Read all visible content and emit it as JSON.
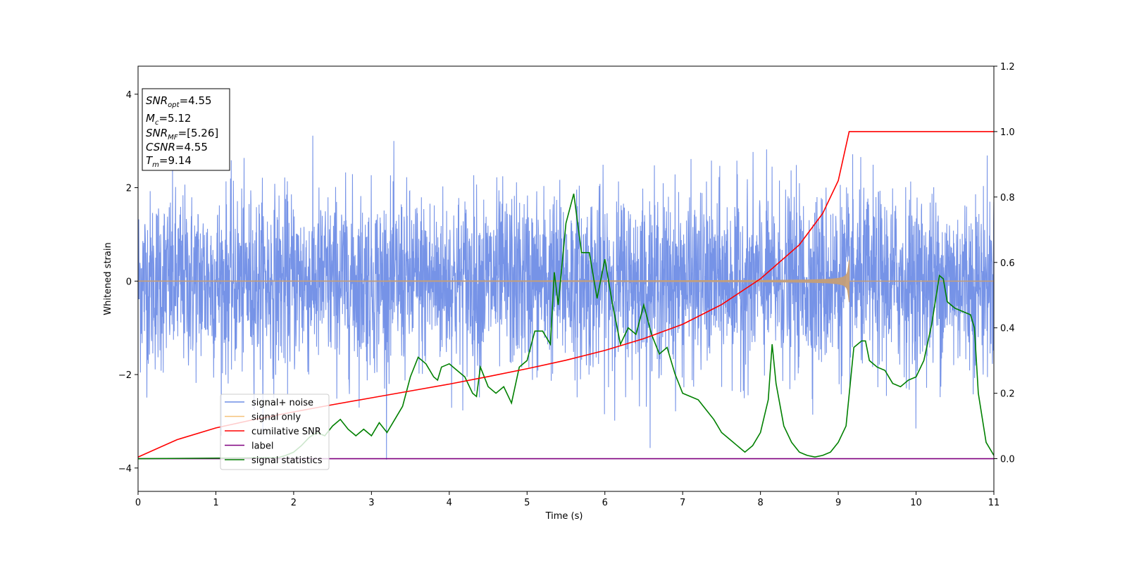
{
  "chart_data": {
    "type": "line",
    "xlabel": "Time (s)",
    "ylabel": "Whitened strain",
    "xlim": [
      0,
      11
    ],
    "ylim": [
      -4.5,
      4.6
    ],
    "y2lim": [
      -0.1,
      1.2
    ],
    "xticks": [
      0,
      1,
      2,
      3,
      4,
      5,
      6,
      7,
      8,
      9,
      10,
      11
    ],
    "yticks": [
      -4,
      -2,
      0,
      2,
      4
    ],
    "y2ticks": [
      0.0,
      0.2,
      0.4,
      0.6,
      0.8,
      1.0,
      1.2
    ],
    "y2tick_labels": [
      "0.0",
      "0.2",
      "0.4",
      "0.6",
      "0.8",
      "1.0",
      "1.2"
    ],
    "grid": false,
    "legend_position": "lower-left",
    "annotation": {
      "lines": [
        {
          "main": "SNR",
          "sub": "opt",
          "rest": "=4.55"
        },
        {
          "main": "M",
          "sub": "c",
          "rest": "=5.12"
        },
        {
          "main": "SNR",
          "sub": "MF",
          "rest": "=[5.26]"
        },
        {
          "main": "CSNR",
          "sub": "",
          "rest": "=4.55"
        },
        {
          "main": "T",
          "sub": "m",
          "rest": "=9.14"
        }
      ]
    },
    "merger_time": 9.14,
    "series": [
      {
        "name": "signal+ noise",
        "axis": "left",
        "color": "#6f8de6",
        "noise_sigma": 1.0,
        "duration": 11
      },
      {
        "name": "signal only",
        "axis": "left",
        "color": "#f5c27a",
        "draw_color": "#c49e78",
        "peak_amplitude": 0.45,
        "end_time": 9.14
      },
      {
        "name": "cumilative SNR",
        "axis": "right",
        "color": "#ff0000",
        "x": [
          0,
          0.5,
          1,
          1.5,
          2,
          2.5,
          3,
          3.5,
          4,
          4.5,
          5,
          5.5,
          6,
          6.5,
          7,
          7.5,
          8,
          8.5,
          8.8,
          9.0,
          9.14,
          11
        ],
        "y": [
          0.005,
          0.058,
          0.094,
          0.12,
          0.143,
          0.165,
          0.186,
          0.207,
          0.228,
          0.251,
          0.275,
          0.301,
          0.331,
          0.367,
          0.411,
          0.471,
          0.55,
          0.654,
          0.75,
          0.85,
          1.0,
          1.0
        ]
      },
      {
        "name": "label",
        "axis": "right",
        "color": "#800080",
        "x": [
          0,
          11
        ],
        "y": [
          0,
          0
        ]
      },
      {
        "name": "signal statistics",
        "axis": "right",
        "color": "#008000",
        "x": [
          0,
          1.8,
          1.9,
          2.0,
          2.1,
          2.2,
          2.3,
          2.4,
          2.5,
          2.6,
          2.7,
          2.8,
          2.9,
          3.0,
          3.1,
          3.2,
          3.3,
          3.4,
          3.5,
          3.6,
          3.7,
          3.8,
          3.85,
          3.9,
          4.0,
          4.1,
          4.2,
          4.3,
          4.35,
          4.4,
          4.5,
          4.6,
          4.7,
          4.8,
          4.9,
          5.0,
          5.1,
          5.2,
          5.3,
          5.35,
          5.4,
          5.5,
          5.6,
          5.7,
          5.8,
          5.9,
          6.0,
          6.1,
          6.2,
          6.3,
          6.4,
          6.5,
          6.6,
          6.7,
          6.8,
          6.9,
          7.0,
          7.1,
          7.2,
          7.3,
          7.4,
          7.5,
          7.6,
          7.7,
          7.8,
          7.9,
          8.0,
          8.1,
          8.15,
          8.2,
          8.3,
          8.4,
          8.5,
          8.6,
          8.7,
          8.8,
          8.9,
          9.0,
          9.1,
          9.2,
          9.3,
          9.35,
          9.4,
          9.5,
          9.6,
          9.7,
          9.8,
          9.9,
          10.0,
          10.1,
          10.2,
          10.3,
          10.35,
          10.4,
          10.5,
          10.6,
          10.7,
          10.75,
          10.8,
          10.9,
          11.0
        ],
        "y": [
          0.0,
          0.003,
          0.01,
          0.02,
          0.04,
          0.065,
          0.08,
          0.07,
          0.1,
          0.12,
          0.09,
          0.07,
          0.09,
          0.07,
          0.11,
          0.08,
          0.12,
          0.16,
          0.25,
          0.31,
          0.29,
          0.25,
          0.24,
          0.28,
          0.29,
          0.27,
          0.25,
          0.2,
          0.19,
          0.28,
          0.22,
          0.2,
          0.22,
          0.17,
          0.28,
          0.3,
          0.39,
          0.39,
          0.35,
          0.57,
          0.47,
          0.72,
          0.81,
          0.63,
          0.63,
          0.49,
          0.61,
          0.47,
          0.35,
          0.4,
          0.38,
          0.47,
          0.38,
          0.32,
          0.34,
          0.26,
          0.2,
          0.19,
          0.18,
          0.15,
          0.12,
          0.08,
          0.06,
          0.04,
          0.02,
          0.04,
          0.08,
          0.18,
          0.35,
          0.23,
          0.1,
          0.05,
          0.02,
          0.01,
          0.005,
          0.01,
          0.02,
          0.05,
          0.1,
          0.34,
          0.36,
          0.36,
          0.3,
          0.28,
          0.27,
          0.23,
          0.22,
          0.24,
          0.25,
          0.3,
          0.41,
          0.56,
          0.55,
          0.48,
          0.46,
          0.45,
          0.44,
          0.4,
          0.2,
          0.05,
          0.01
        ]
      }
    ]
  }
}
